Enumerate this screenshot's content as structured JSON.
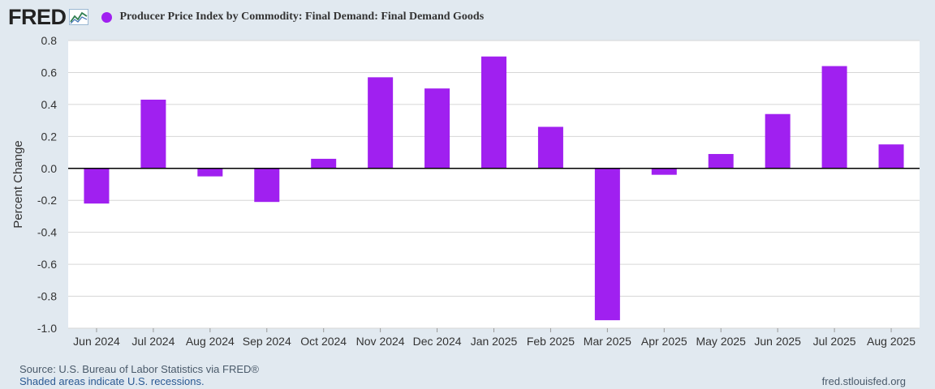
{
  "header": {
    "logo_text": "FRED",
    "logo_icon": "fred-line-chart-icon",
    "series_title": "Producer Price Index by Commodity: Final Demand: Final Demand Goods"
  },
  "colors": {
    "bar": "#a020f0",
    "background": "#e1e9f0",
    "plot_background": "#ffffff",
    "grid": "#d6d6d6",
    "axis_text": "#333333"
  },
  "chart_data": {
    "type": "bar",
    "title": "Producer Price Index by Commodity: Final Demand: Final Demand Goods",
    "xlabel": "",
    "ylabel": "Percent Change",
    "ylim": [
      -1.0,
      0.8
    ],
    "yticks": [
      0.8,
      0.6,
      0.4,
      0.2,
      0.0,
      -0.2,
      -0.4,
      -0.6,
      -0.8,
      -1.0
    ],
    "ytick_labels": [
      "0.8",
      "0.6",
      "0.4",
      "0.2",
      "0.0",
      "-0.2",
      "-0.4",
      "-0.6",
      "-0.8",
      "-1.0"
    ],
    "categories": [
      "Jun 2024",
      "Jul 2024",
      "Aug 2024",
      "Sep 2024",
      "Oct 2024",
      "Nov 2024",
      "Dec 2024",
      "Jan 2025",
      "Feb 2025",
      "Mar 2025",
      "Apr 2025",
      "May 2025",
      "Jun 2025",
      "Jul 2025",
      "Aug 2025"
    ],
    "values": [
      -0.22,
      0.43,
      -0.05,
      -0.21,
      0.06,
      0.57,
      0.5,
      0.7,
      0.26,
      -0.95,
      -0.04,
      0.09,
      0.34,
      0.64,
      0.15
    ],
    "grid": true,
    "legend": "top-left"
  },
  "footer": {
    "source": "Source: U.S. Bureau of Labor Statistics via FRED®",
    "recession_note": "Shaded areas indicate U.S. recessions.",
    "url": "fred.stlouisfed.org"
  }
}
